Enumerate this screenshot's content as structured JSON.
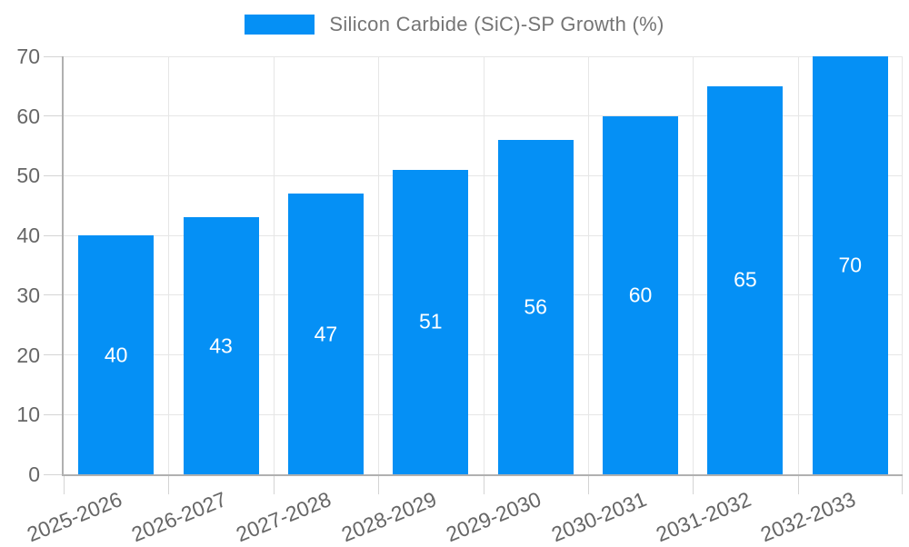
{
  "chart_data": {
    "type": "bar",
    "series_name": "Silicon Carbide (SiC)-SP Growth (%)",
    "categories": [
      "2025-2026",
      "2026-2027",
      "2027-2028",
      "2028-2029",
      "2029-2030",
      "2030-2031",
      "2031-2032",
      "2032-2033"
    ],
    "values": [
      40,
      43,
      47,
      51,
      56,
      60,
      65,
      70
    ],
    "title": "",
    "xlabel": "",
    "ylabel": "",
    "ylim": [
      0,
      70
    ],
    "yticks": [
      0,
      10,
      20,
      30,
      40,
      50,
      60,
      70
    ],
    "grid": true,
    "legend_position": "top-center",
    "value_label_position": "inside-center",
    "colors": {
      "bar": "#0590f5",
      "axis_line": "#b0b0b0",
      "gridline": "#e6e6e6",
      "tick": "#d4d4d4",
      "axis_text": "#666666",
      "legend_text": "#757575",
      "value_label_text": "#ffffff",
      "background": "#ffffff"
    }
  }
}
